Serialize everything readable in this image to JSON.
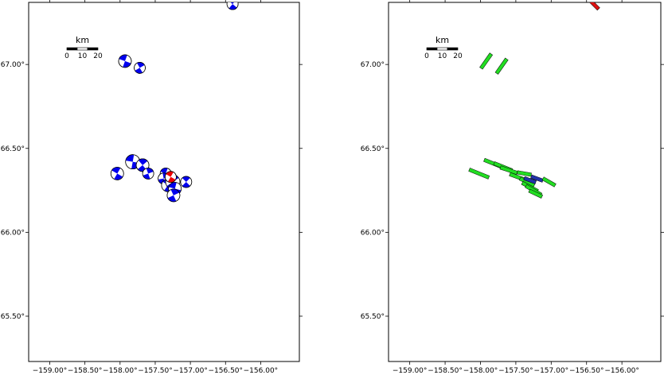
{
  "colors": {
    "mechanism": "#0000ee",
    "mechanism_highlight": "#ee0000",
    "fault_primary": "#22dd22",
    "fault_alt": "#2233aa",
    "fault_highlight": "#dd1111",
    "frame": "#000000"
  },
  "axes": {
    "lon_ticks": [
      {
        "value": -159.0,
        "label": "−159.00°"
      },
      {
        "value": -158.5,
        "label": "−158.50°"
      },
      {
        "value": -158.0,
        "label": "−158.00°"
      },
      {
        "value": -157.5,
        "label": "−157.50°"
      },
      {
        "value": -157.0,
        "label": "−157.00°"
      },
      {
        "value": -156.5,
        "label": "−156.50°"
      },
      {
        "value": -156.0,
        "label": "−156.00°"
      }
    ],
    "lat_ticks": [
      {
        "value": 67.0,
        "label": "67.00°"
      },
      {
        "value": 66.5,
        "label": "66.50°"
      },
      {
        "value": 66.0,
        "label": "66.00°"
      },
      {
        "value": 65.5,
        "label": "65.50°"
      }
    ],
    "lon_range": [
      -159.3,
      -155.45
    ],
    "lat_range": [
      65.23,
      67.37
    ]
  },
  "scale_bar": {
    "unit": "km",
    "labels": [
      "0",
      "10",
      "20"
    ]
  },
  "left_panel": {
    "events": [
      {
        "lon": -156.4,
        "lat": 67.36,
        "size": 7,
        "highlight": false,
        "rot": 40
      },
      {
        "lon": -157.93,
        "lat": 67.02,
        "size": 8,
        "highlight": false,
        "rot": 20
      },
      {
        "lon": -157.72,
        "lat": 66.98,
        "size": 7,
        "highlight": false,
        "rot": 60
      },
      {
        "lon": -158.04,
        "lat": 66.35,
        "size": 8,
        "highlight": false,
        "rot": 30
      },
      {
        "lon": -157.82,
        "lat": 66.42,
        "size": 9,
        "highlight": false,
        "rot": 10
      },
      {
        "lon": -157.68,
        "lat": 66.4,
        "size": 8,
        "highlight": false,
        "rot": 50
      },
      {
        "lon": -157.6,
        "lat": 66.35,
        "size": 7,
        "highlight": false,
        "rot": 70
      },
      {
        "lon": -157.35,
        "lat": 66.35,
        "size": 7,
        "highlight": false,
        "rot": 20
      },
      {
        "lon": -157.38,
        "lat": 66.32,
        "size": 7,
        "highlight": false,
        "rot": 80
      },
      {
        "lon": -157.32,
        "lat": 66.28,
        "size": 8,
        "highlight": false,
        "rot": 35
      },
      {
        "lon": -157.25,
        "lat": 66.3,
        "size": 9,
        "highlight": false,
        "rot": 55
      },
      {
        "lon": -157.22,
        "lat": 66.26,
        "size": 8,
        "highlight": false,
        "rot": 15
      },
      {
        "lon": -157.24,
        "lat": 66.22,
        "size": 8,
        "highlight": false,
        "rot": 65
      },
      {
        "lon": -157.28,
        "lat": 66.33,
        "size": 7,
        "highlight": true,
        "rot": 30
      },
      {
        "lon": -157.06,
        "lat": 66.3,
        "size": 7,
        "highlight": false,
        "rot": 45
      }
    ]
  },
  "right_panel": {
    "faults": [
      {
        "lon": -157.92,
        "lat": 67.02,
        "len": 10,
        "az": 35,
        "kind": "primary"
      },
      {
        "lon": -157.7,
        "lat": 66.99,
        "len": 10,
        "az": 35,
        "kind": "primary"
      },
      {
        "lon": -158.02,
        "lat": 66.35,
        "len": 12,
        "az": 112,
        "kind": "primary"
      },
      {
        "lon": -157.82,
        "lat": 66.41,
        "len": 11,
        "az": 112,
        "kind": "primary"
      },
      {
        "lon": -157.68,
        "lat": 66.39,
        "len": 11,
        "az": 112,
        "kind": "primary"
      },
      {
        "lon": -157.6,
        "lat": 66.37,
        "len": 10,
        "az": 108,
        "kind": "primary"
      },
      {
        "lon": -157.48,
        "lat": 66.33,
        "len": 9,
        "az": 110,
        "kind": "primary"
      },
      {
        "lon": -157.38,
        "lat": 66.35,
        "len": 8,
        "az": 100,
        "kind": "primary"
      },
      {
        "lon": -157.34,
        "lat": 66.3,
        "len": 9,
        "az": 115,
        "kind": "primary"
      },
      {
        "lon": -157.3,
        "lat": 66.27,
        "len": 10,
        "az": 118,
        "kind": "primary"
      },
      {
        "lon": -157.25,
        "lat": 66.25,
        "len": 10,
        "az": 120,
        "kind": "primary"
      },
      {
        "lon": -157.22,
        "lat": 66.23,
        "len": 8,
        "az": 115,
        "kind": "primary"
      },
      {
        "lon": -157.3,
        "lat": 66.31,
        "len": 7,
        "az": 110,
        "kind": "alt"
      },
      {
        "lon": -157.2,
        "lat": 66.32,
        "len": 7,
        "az": 110,
        "kind": "alt"
      },
      {
        "lon": -157.03,
        "lat": 66.3,
        "len": 8,
        "az": 120,
        "kind": "primary"
      },
      {
        "lon": -156.4,
        "lat": 67.36,
        "len": 8,
        "az": 135,
        "kind": "highlight"
      }
    ]
  }
}
